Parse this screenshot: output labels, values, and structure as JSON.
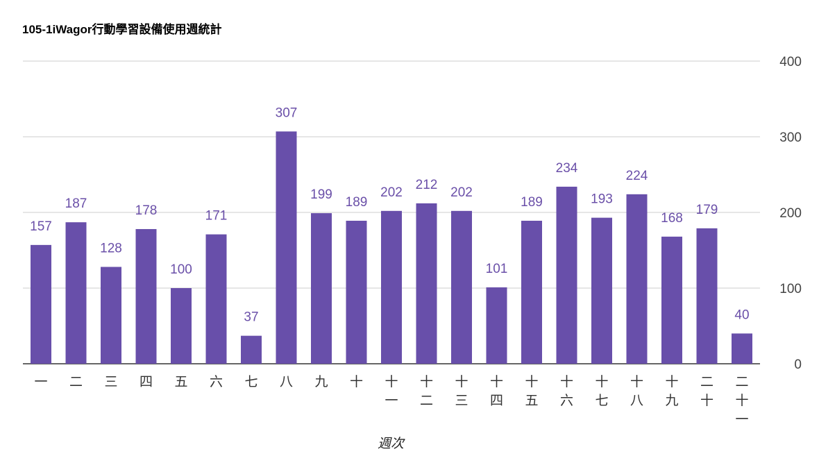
{
  "chart_data": {
    "type": "bar",
    "title": "105-1iWagor行動學習設備使用週統計",
    "xlabel": "週次",
    "ylabel": "",
    "ylim": [
      0,
      400
    ],
    "yticks": [
      "0",
      "100",
      "200",
      "300",
      "400"
    ],
    "y_axis_side": "right",
    "grid": true,
    "bar_color": "#684faa",
    "label_color": "#6a4fa8",
    "categories": [
      "一",
      "二",
      "三",
      "四",
      "五",
      "六",
      "七",
      "八",
      "九",
      "十",
      "十一",
      "十二",
      "十三",
      "十四",
      "十五",
      "十六",
      "十七",
      "十八",
      "十九",
      "二十",
      "二十一"
    ],
    "values": [
      157,
      187,
      128,
      178,
      100,
      171,
      37,
      307,
      199,
      189,
      202,
      212,
      202,
      101,
      189,
      234,
      193,
      224,
      168,
      179,
      40
    ]
  }
}
